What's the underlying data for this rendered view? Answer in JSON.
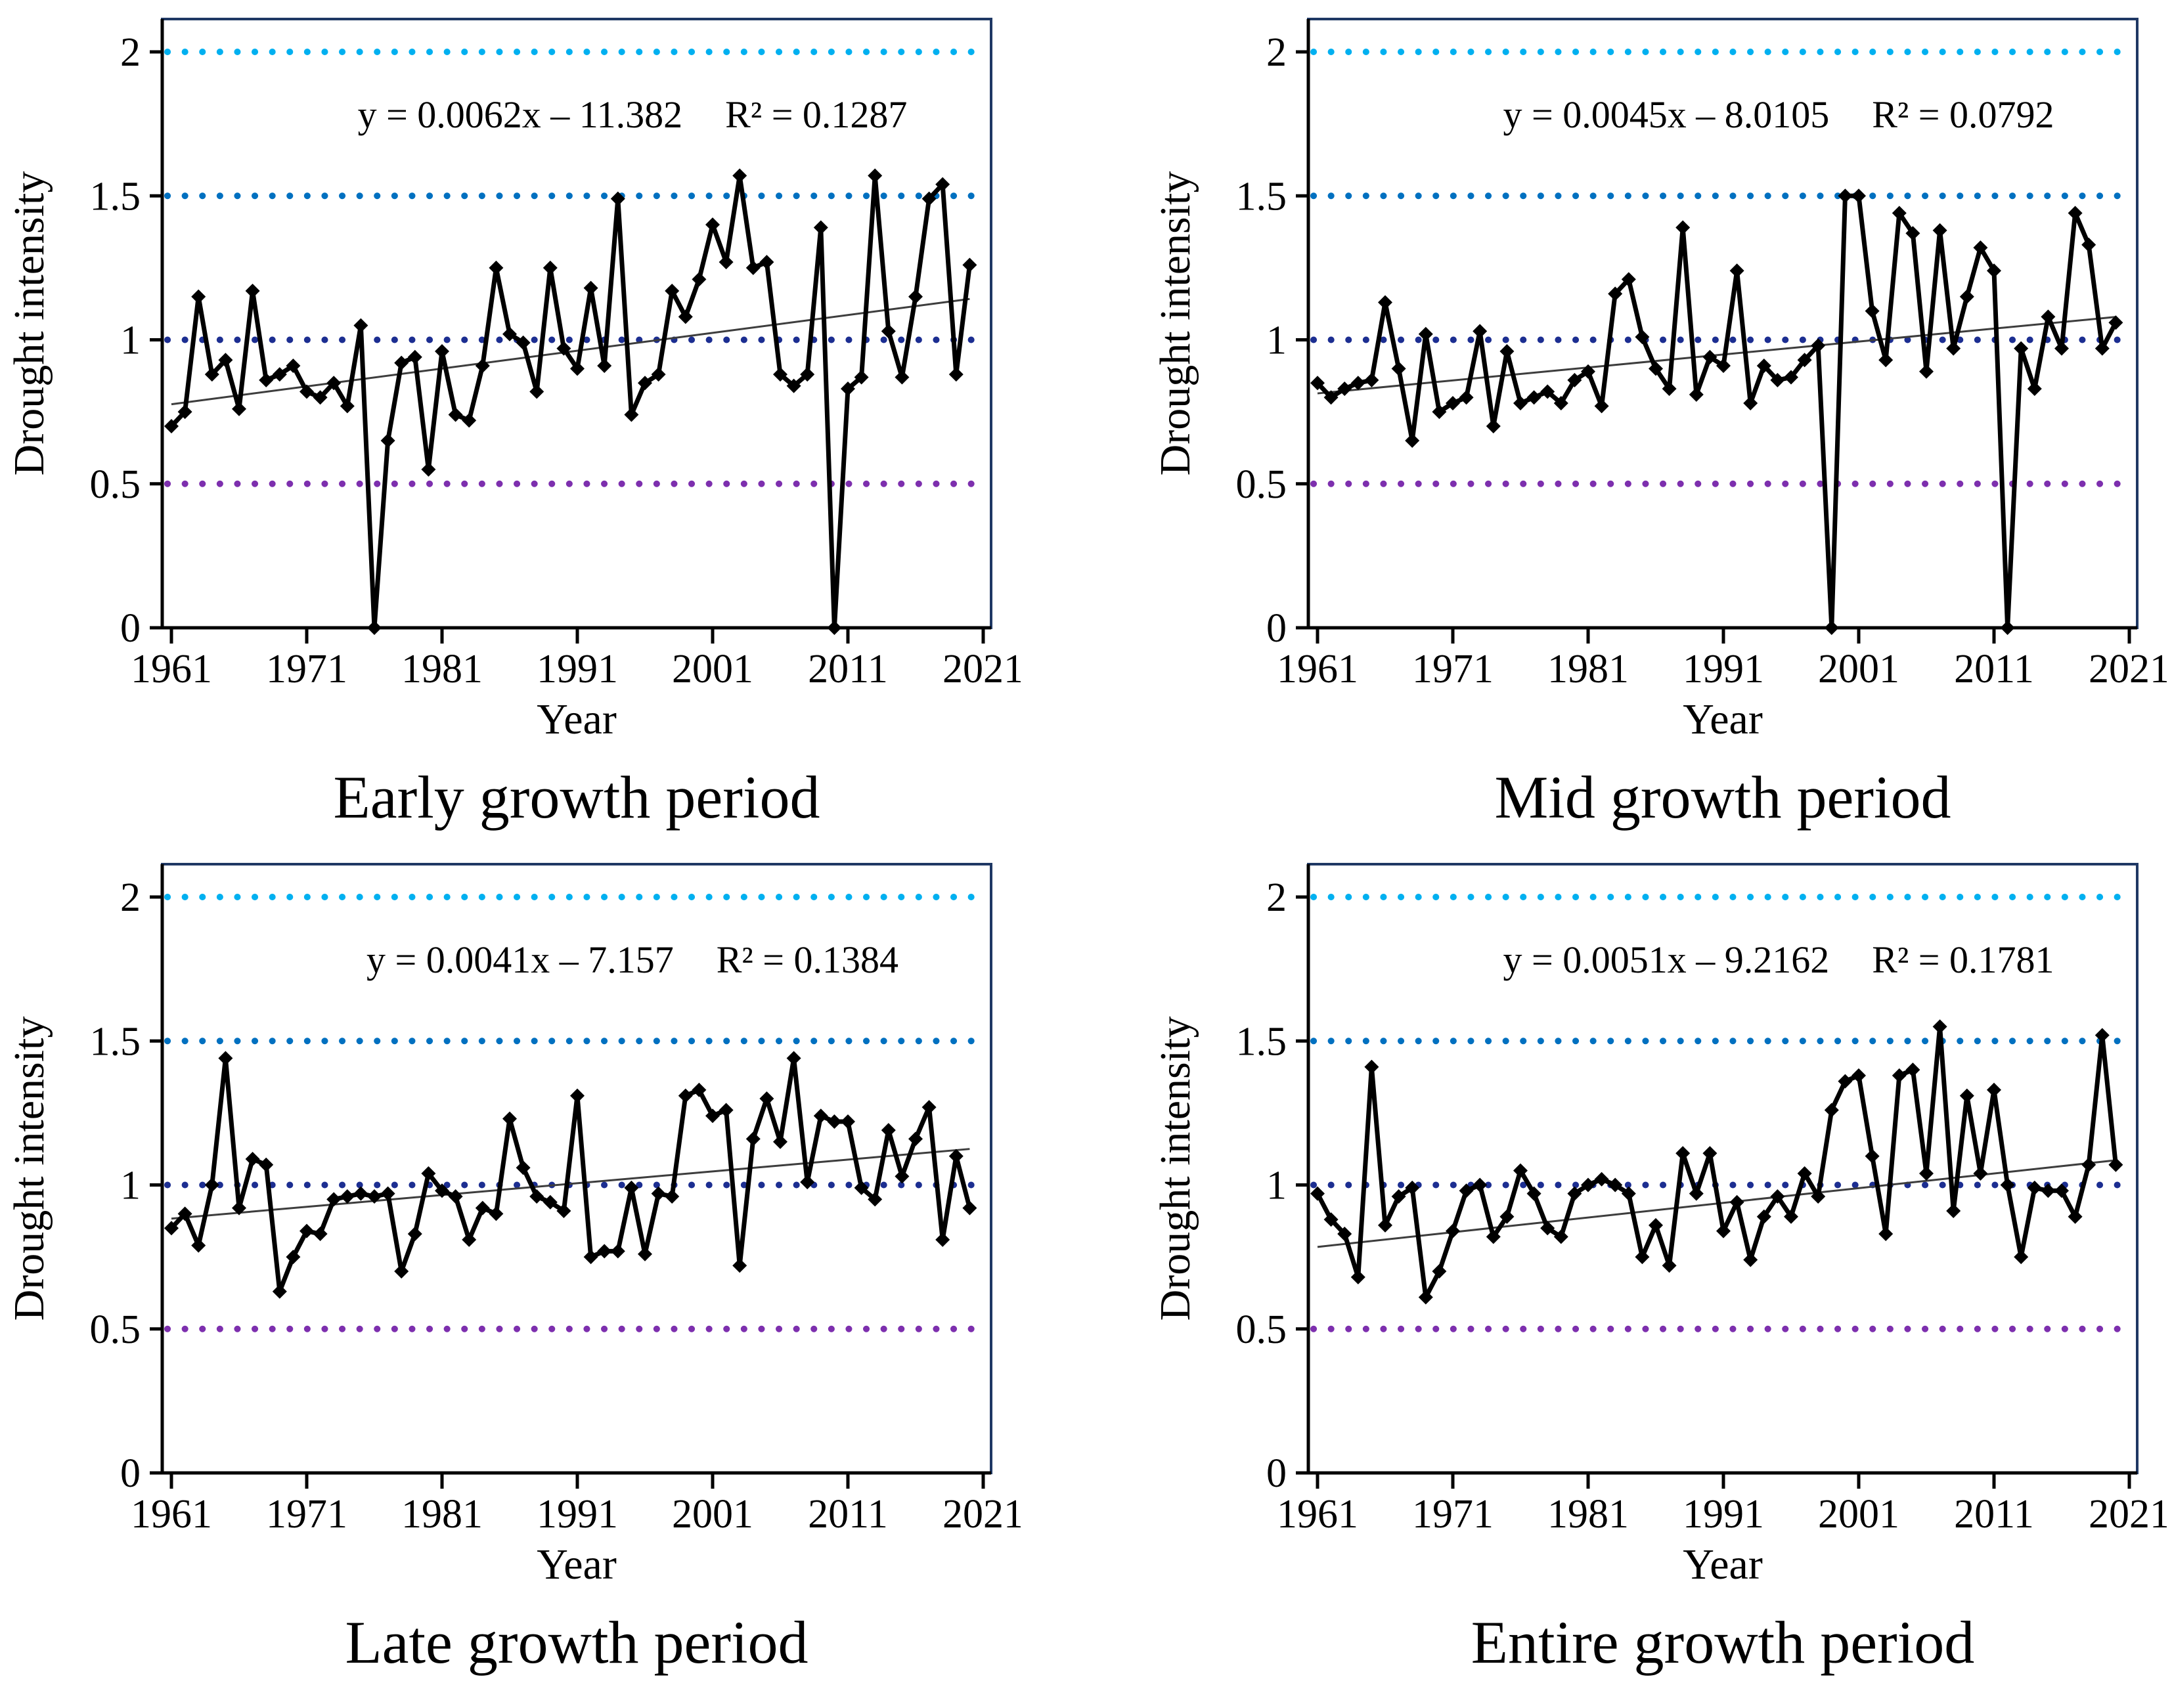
{
  "figure": {
    "background": "#ffffff",
    "frame_color": "#1f3864",
    "axis_color": "#000000",
    "series_color": "#000000",
    "trend_color": "#3d3d3d"
  },
  "chart_data": {
    "type": "line",
    "xlabel": "Year",
    "ylabel": "Drought intensity",
    "xlim": [
      1961,
      2021
    ],
    "ylim": [
      0,
      2.11
    ],
    "grid": "horizontal-dotted-reference-lines-only",
    "legend": "none",
    "x_ticks": [
      1961,
      1971,
      1981,
      1991,
      2001,
      2011,
      2021
    ],
    "y_ticks": [
      "0",
      "0.5",
      "1",
      "1.5",
      "2"
    ],
    "reference_lines": [
      {
        "value": 2.0,
        "color": "#00b0f0",
        "style": "dotted"
      },
      {
        "value": 1.5,
        "color": "#0070c0",
        "style": "dotted"
      },
      {
        "value": 1.0,
        "color": "#1c2e91",
        "style": "dotted"
      },
      {
        "value": 0.5,
        "color": "#7d2fae",
        "style": "dotted"
      }
    ],
    "x": [
      1961,
      1962,
      1963,
      1964,
      1965,
      1966,
      1967,
      1968,
      1969,
      1970,
      1971,
      1972,
      1973,
      1974,
      1975,
      1976,
      1977,
      1978,
      1979,
      1980,
      1981,
      1982,
      1983,
      1984,
      1985,
      1986,
      1987,
      1988,
      1989,
      1990,
      1991,
      1992,
      1993,
      1994,
      1995,
      1996,
      1997,
      1998,
      1999,
      2000,
      2001,
      2002,
      2003,
      2004,
      2005,
      2006,
      2007,
      2008,
      2009,
      2010,
      2011,
      2012,
      2013,
      2014,
      2015,
      2016,
      2017,
      2018,
      2019,
      2020
    ],
    "panels": [
      {
        "title": "Early growth period",
        "equation": "y = 0.0062x – 11.382",
        "r2": "R² = 0.1287",
        "trend": {
          "slope": 0.0062,
          "intercept": -11.382
        },
        "values": [
          0.7,
          0.75,
          1.15,
          0.88,
          0.93,
          0.76,
          1.17,
          0.86,
          0.88,
          0.91,
          0.82,
          0.8,
          0.85,
          0.77,
          1.05,
          0.0,
          0.65,
          0.92,
          0.94,
          0.55,
          0.96,
          0.74,
          0.72,
          0.91,
          1.25,
          1.02,
          0.99,
          0.82,
          1.25,
          0.97,
          0.9,
          1.18,
          0.91,
          1.49,
          0.74,
          0.85,
          0.88,
          1.17,
          1.08,
          1.21,
          1.4,
          1.27,
          1.57,
          1.25,
          1.27,
          0.88,
          0.84,
          0.88,
          1.39,
          0.0,
          0.83,
          0.87,
          1.57,
          1.03,
          0.87,
          1.15,
          1.49,
          1.54,
          0.88,
          1.26
        ]
      },
      {
        "title": "Mid growth period",
        "equation": "y = 0.0045x – 8.0105",
        "r2": "R² = 0.0792",
        "trend": {
          "slope": 0.0045,
          "intercept": -8.0105
        },
        "values": [
          0.85,
          0.8,
          0.83,
          0.85,
          0.86,
          1.13,
          0.9,
          0.65,
          1.02,
          0.75,
          0.78,
          0.8,
          1.03,
          0.7,
          0.96,
          0.78,
          0.8,
          0.82,
          0.78,
          0.86,
          0.89,
          0.77,
          1.16,
          1.21,
          1.01,
          0.9,
          0.83,
          1.39,
          0.81,
          0.94,
          0.91,
          1.24,
          0.78,
          0.91,
          0.86,
          0.87,
          0.93,
          0.98,
          0.0,
          1.5,
          1.5,
          1.1,
          0.93,
          1.44,
          1.37,
          0.89,
          1.38,
          0.97,
          1.15,
          1.32,
          1.24,
          0.0,
          0.97,
          0.83,
          1.08,
          0.97,
          1.44,
          1.33,
          0.97,
          1.06
        ]
      },
      {
        "title": "Late growth period",
        "equation": "y = 0.0041x – 7.157",
        "r2": "R² = 0.1384",
        "trend": {
          "slope": 0.0041,
          "intercept": -7.157
        },
        "values": [
          0.85,
          0.9,
          0.79,
          1.0,
          1.44,
          0.92,
          1.09,
          1.07,
          0.63,
          0.75,
          0.84,
          0.83,
          0.95,
          0.96,
          0.97,
          0.96,
          0.97,
          0.7,
          0.83,
          1.04,
          0.98,
          0.96,
          0.81,
          0.92,
          0.9,
          1.23,
          1.06,
          0.96,
          0.94,
          0.91,
          1.31,
          0.75,
          0.77,
          0.77,
          0.99,
          0.76,
          0.97,
          0.96,
          1.31,
          1.33,
          1.24,
          1.26,
          0.72,
          1.16,
          1.3,
          1.15,
          1.44,
          1.01,
          1.24,
          1.22,
          1.22,
          0.99,
          0.95,
          1.19,
          1.03,
          1.16,
          1.27,
          0.81,
          1.1,
          0.92
        ]
      },
      {
        "title": "Entire growth period",
        "equation": "y = 0.0051x – 9.2162",
        "r2": "R² = 0.1781",
        "trend": {
          "slope": 0.0051,
          "intercept": -9.2162
        },
        "values": [
          0.97,
          0.88,
          0.83,
          0.68,
          1.41,
          0.86,
          0.96,
          0.99,
          0.61,
          0.7,
          0.84,
          0.98,
          1.0,
          0.82,
          0.89,
          1.05,
          0.97,
          0.85,
          0.82,
          0.97,
          1.0,
          1.02,
          1.0,
          0.97,
          0.75,
          0.86,
          0.72,
          1.11,
          0.97,
          1.11,
          0.84,
          0.94,
          0.74,
          0.89,
          0.96,
          0.89,
          1.04,
          0.96,
          1.26,
          1.36,
          1.38,
          1.1,
          0.83,
          1.38,
          1.4,
          1.04,
          1.55,
          0.91,
          1.31,
          1.04,
          1.33,
          1.0,
          0.75,
          0.99,
          0.98,
          0.98,
          0.89,
          1.07,
          1.52,
          1.07
        ]
      }
    ]
  }
}
